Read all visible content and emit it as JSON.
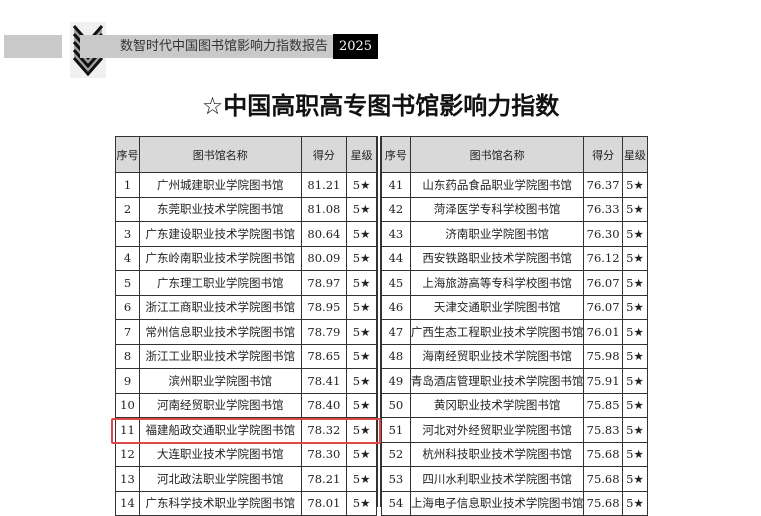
{
  "header": {
    "report_title": "数智时代中国图书馆影响力指数报告",
    "year": "2025"
  },
  "title": "☆中国高职高专图书馆影响力指数",
  "columns": [
    "序号",
    "图书馆名称",
    "得分",
    "星级"
  ],
  "left_rows": [
    [
      "1",
      "广州城建职业学院图书馆",
      "81.21",
      "5★"
    ],
    [
      "2",
      "东莞职业技术学院图书馆",
      "81.08",
      "5★"
    ],
    [
      "3",
      "广东建设职业技术学院图书馆",
      "80.64",
      "5★"
    ],
    [
      "4",
      "广东岭南职业技术学院图书馆",
      "80.09",
      "5★"
    ],
    [
      "5",
      "广东理工职业学院图书馆",
      "78.97",
      "5★"
    ],
    [
      "6",
      "浙江工商职业技术学院图书馆",
      "78.95",
      "5★"
    ],
    [
      "7",
      "常州信息职业技术学院图书馆",
      "78.79",
      "5★"
    ],
    [
      "8",
      "浙江工业职业技术学院图书馆",
      "78.65",
      "5★"
    ],
    [
      "9",
      "滨州职业学院图书馆",
      "78.41",
      "5★"
    ],
    [
      "10",
      "河南经贸职业学院图书馆",
      "78.40",
      "5★"
    ],
    [
      "11",
      "福建船政交通职业学院图书馆",
      "78.32",
      "5★"
    ],
    [
      "12",
      "大连职业技术学院图书馆",
      "78.30",
      "5★"
    ],
    [
      "13",
      "河北政法职业学院图书馆",
      "78.21",
      "5★"
    ],
    [
      "14",
      "广东科学技术职业学院图书馆",
      "78.01",
      "5★"
    ]
  ],
  "right_rows": [
    [
      "41",
      "山东药品食品职业学院图书馆",
      "76.37",
      "5★"
    ],
    [
      "42",
      "菏泽医学专科学校图书馆",
      "76.33",
      "5★"
    ],
    [
      "43",
      "济南职业学院图书馆",
      "76.30",
      "5★"
    ],
    [
      "44",
      "西安铁路职业技术学院图书馆",
      "76.12",
      "5★"
    ],
    [
      "45",
      "上海旅游高等专科学校图书馆",
      "76.07",
      "5★"
    ],
    [
      "46",
      "天津交通职业学院图书馆",
      "76.07",
      "5★"
    ],
    [
      "47",
      "广西生态工程职业技术学院图书馆",
      "76.01",
      "5★"
    ],
    [
      "48",
      "海南经贸职业技术学院图书馆",
      "75.98",
      "5★"
    ],
    [
      "49",
      "青岛酒店管理职业技术学院图书馆",
      "75.91",
      "5★"
    ],
    [
      "50",
      "黄冈职业技术学院图书馆",
      "75.85",
      "5★"
    ],
    [
      "51",
      "河北对外经贸职业学院图书馆",
      "75.83",
      "5★"
    ],
    [
      "52",
      "杭州科技职业技术学院图书馆",
      "75.68",
      "5★"
    ],
    [
      "53",
      "四川水利职业技术学院图书馆",
      "75.68",
      "5★"
    ],
    [
      "54",
      "上海电子信息职业技术学院图书馆",
      "75.68",
      "5★"
    ]
  ],
  "highlight_color": "#e04848"
}
